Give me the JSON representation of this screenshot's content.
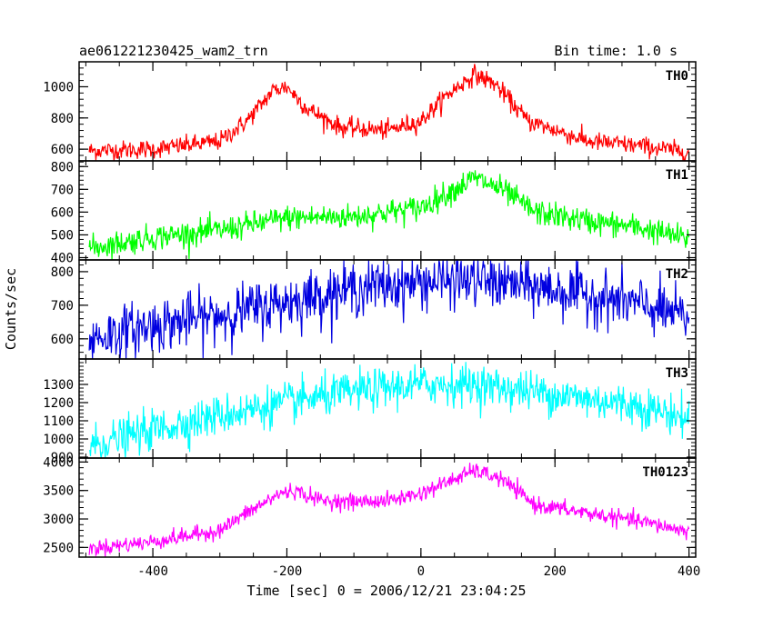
{
  "header": {
    "title": "ae061221230425_wam2_trn",
    "bin_time": "Bin time: 1.0 s"
  },
  "chart_data": {
    "type": "line",
    "xlabel": "Time [sec] 0 = 2006/12/21 23:04:25",
    "ylabel": "Counts/sec",
    "xlim": [
      -510,
      410
    ],
    "x_ticks": [
      -400,
      -200,
      0,
      200,
      400
    ],
    "x_tick_labels": [
      "-400",
      "-200",
      "0",
      "200",
      "400"
    ],
    "x_range": [
      -495,
      400
    ],
    "panels": [
      {
        "name": "TH0",
        "color": "#ff0000",
        "ylim": [
          525,
          1160
        ],
        "y_ticks": [
          600,
          800,
          1000
        ],
        "y_tick_labels": [
          "600",
          "800",
          "1000"
        ],
        "noise": 30,
        "profile": [
          [
            -495,
            590
          ],
          [
            -400,
            600
          ],
          [
            -300,
            650
          ],
          [
            -260,
            780
          ],
          [
            -220,
            980
          ],
          [
            -200,
            1000
          ],
          [
            -170,
            860
          ],
          [
            -120,
            740
          ],
          [
            -50,
            720
          ],
          [
            0,
            780
          ],
          [
            40,
            950
          ],
          [
            80,
            1080
          ],
          [
            110,
            1020
          ],
          [
            160,
            780
          ],
          [
            250,
            650
          ],
          [
            330,
            620
          ],
          [
            400,
            580
          ]
        ]
      },
      {
        "name": "TH1",
        "color": "#00ff00",
        "ylim": [
          390,
          825
        ],
        "y_ticks": [
          400,
          500,
          600,
          700,
          800
        ],
        "y_tick_labels": [
          "400",
          "500",
          "600",
          "700",
          "800"
        ],
        "noise": 28,
        "profile": [
          [
            -495,
            440
          ],
          [
            -400,
            490
          ],
          [
            -300,
            520
          ],
          [
            -200,
            575
          ],
          [
            -100,
            580
          ],
          [
            0,
            620
          ],
          [
            50,
            700
          ],
          [
            80,
            750
          ],
          [
            120,
            700
          ],
          [
            170,
            600
          ],
          [
            250,
            560
          ],
          [
            330,
            530
          ],
          [
            400,
            480
          ]
        ]
      },
      {
        "name": "TH2",
        "color": "#0000e0",
        "ylim": [
          540,
          835
        ],
        "y_ticks": [
          600,
          700,
          800
        ],
        "y_tick_labels": [
          "600",
          "700",
          "800"
        ],
        "noise": 40,
        "profile": [
          [
            -495,
            600
          ],
          [
            -400,
            640
          ],
          [
            -300,
            670
          ],
          [
            -200,
            710
          ],
          [
            -100,
            750
          ],
          [
            0,
            770
          ],
          [
            80,
            775
          ],
          [
            150,
            760
          ],
          [
            250,
            730
          ],
          [
            330,
            700
          ],
          [
            400,
            660
          ]
        ]
      },
      {
        "name": "TH3",
        "color": "#00ffff",
        "ylim": [
          895,
          1440
        ],
        "y_ticks": [
          900,
          1000,
          1100,
          1200,
          1300
        ],
        "y_tick_labels": [
          "900",
          "1000",
          "1100",
          "1200",
          "1300"
        ],
        "noise": 55,
        "profile": [
          [
            -495,
            960
          ],
          [
            -400,
            1050
          ],
          [
            -300,
            1130
          ],
          [
            -200,
            1200
          ],
          [
            -100,
            1260
          ],
          [
            0,
            1300
          ],
          [
            80,
            1300
          ],
          [
            150,
            1270
          ],
          [
            250,
            1220
          ],
          [
            330,
            1180
          ],
          [
            400,
            1110
          ]
        ]
      },
      {
        "name": "TH0123",
        "color": "#ff00ff",
        "ylim": [
          2330,
          4070
        ],
        "y_ticks": [
          2500,
          3000,
          3500,
          4000
        ],
        "y_tick_labels": [
          "2500",
          "3000",
          "3500",
          "4000"
        ],
        "noise": 70,
        "profile": [
          [
            -495,
            2480
          ],
          [
            -400,
            2600
          ],
          [
            -300,
            2800
          ],
          [
            -260,
            3100
          ],
          [
            -210,
            3450
          ],
          [
            -190,
            3500
          ],
          [
            -150,
            3330
          ],
          [
            -100,
            3300
          ],
          [
            -50,
            3320
          ],
          [
            0,
            3450
          ],
          [
            50,
            3700
          ],
          [
            80,
            3850
          ],
          [
            120,
            3700
          ],
          [
            170,
            3250
          ],
          [
            250,
            3100
          ],
          [
            330,
            2950
          ],
          [
            400,
            2780
          ]
        ]
      }
    ]
  }
}
